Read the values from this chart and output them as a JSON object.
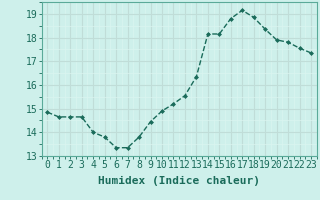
{
  "x": [
    0,
    1,
    2,
    3,
    4,
    5,
    6,
    7,
    8,
    9,
    10,
    11,
    12,
    13,
    14,
    15,
    16,
    17,
    18,
    19,
    20,
    21,
    22,
    23
  ],
  "y": [
    14.85,
    14.65,
    14.65,
    14.65,
    14.0,
    13.8,
    13.35,
    13.35,
    13.8,
    14.45,
    14.9,
    15.2,
    15.55,
    16.35,
    18.15,
    18.15,
    18.8,
    19.15,
    18.85,
    18.35,
    17.9,
    17.8,
    17.55,
    17.35
  ],
  "xlim": [
    -0.5,
    23.5
  ],
  "ylim": [
    13.0,
    19.5
  ],
  "yticks": [
    13,
    14,
    15,
    16,
    17,
    18,
    19
  ],
  "xtick_labels": [
    "0",
    "1",
    "2",
    "3",
    "4",
    "5",
    "6",
    "7",
    "8",
    "9",
    "10",
    "11",
    "12",
    "13",
    "14",
    "15",
    "16",
    "17",
    "18",
    "19",
    "20",
    "21",
    "22",
    "23"
  ],
  "xlabel": "Humidex (Indice chaleur)",
  "line_color": "#1a6b5a",
  "marker": "D",
  "marker_size": 2.0,
  "bg_color": "#cef0eb",
  "grid_color_major": "#c0ddd8",
  "grid_color_minor": "#daf5f0",
  "xlabel_fontsize": 8,
  "tick_fontsize": 7
}
